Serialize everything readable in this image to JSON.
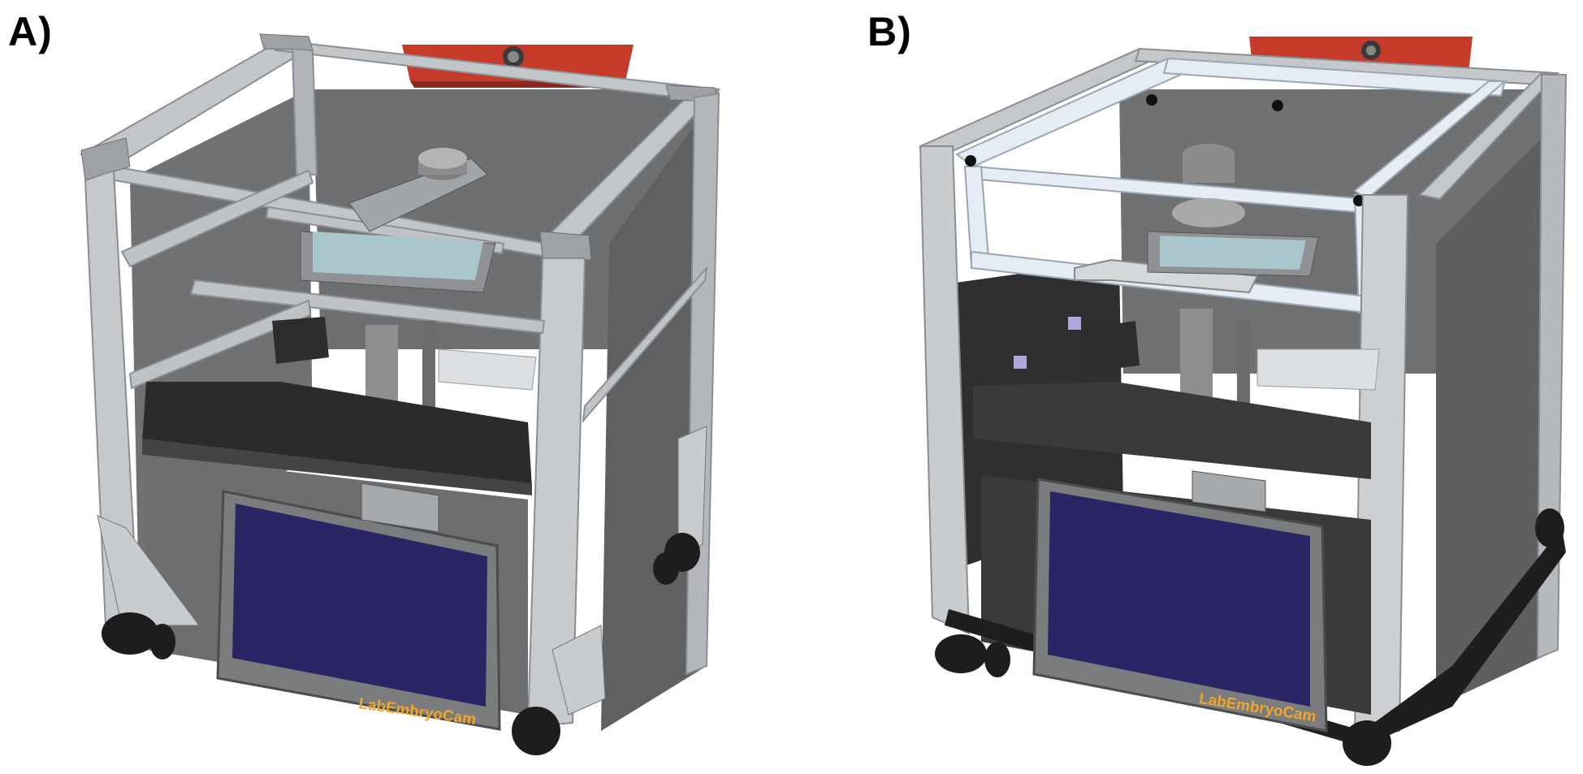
{
  "figure": {
    "panels": [
      {
        "label": "A)",
        "device_brand": "LabEmbryoCam",
        "variant": "open frame, corner gusset brackets"
      },
      {
        "label": "B)",
        "device_brand": "LabEmbryoCam",
        "variant": "lid frame with clear panels"
      }
    ]
  },
  "colors": {
    "aluminium": "#b9bdc1",
    "panel_dark": "#6b6c6d",
    "screen": "#2a2565",
    "bezel": "#7a7c7e",
    "accent_red": "#c63a2a",
    "brand_text": "#f0a52a",
    "stage_tray": "#a8c6cc"
  }
}
